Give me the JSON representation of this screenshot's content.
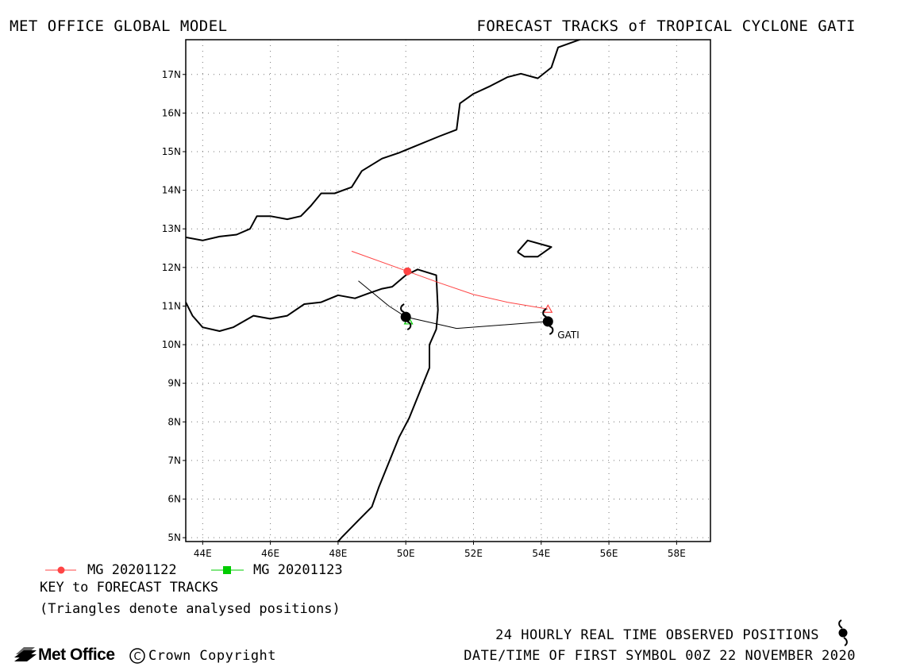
{
  "header": {
    "left_title": "MET OFFICE GLOBAL MODEL",
    "right_title": "FORECAST TRACKS of TROPICAL CYCLONE GATI"
  },
  "map": {
    "lon_range": [
      43.5,
      59.0
    ],
    "lat_range": [
      4.9,
      17.9
    ],
    "x_ticks": [
      "44E",
      "46E",
      "48E",
      "50E",
      "52E",
      "54E",
      "56E",
      "58E"
    ],
    "y_ticks": [
      "5N",
      "6N",
      "7N",
      "8N",
      "9N",
      "10N",
      "11N",
      "12N",
      "13N",
      "14N",
      "15N",
      "16N",
      "17N"
    ],
    "grid": true,
    "storm_label": "GATI",
    "coastlines": {
      "arabia": [
        [
          43.5,
          12.78
        ],
        [
          44.0,
          12.7
        ],
        [
          44.5,
          12.8
        ],
        [
          45.0,
          12.85
        ],
        [
          45.4,
          13.0
        ],
        [
          45.6,
          13.33
        ],
        [
          46.0,
          13.33
        ],
        [
          46.5,
          13.25
        ],
        [
          46.9,
          13.33
        ],
        [
          47.2,
          13.6
        ],
        [
          47.5,
          13.92
        ],
        [
          47.9,
          13.92
        ],
        [
          48.4,
          14.08
        ],
        [
          48.7,
          14.5
        ],
        [
          49.3,
          14.82
        ],
        [
          49.8,
          14.97
        ],
        [
          50.3,
          15.15
        ],
        [
          51.0,
          15.4
        ],
        [
          51.5,
          15.57
        ],
        [
          51.6,
          16.25
        ],
        [
          52.0,
          16.5
        ],
        [
          52.5,
          16.7
        ],
        [
          53.0,
          16.93
        ],
        [
          53.4,
          17.02
        ],
        [
          53.9,
          16.9
        ],
        [
          54.3,
          17.18
        ],
        [
          54.5,
          17.7
        ],
        [
          55.2,
          17.92
        ]
      ],
      "africa": [
        [
          43.5,
          11.1
        ],
        [
          43.7,
          10.75
        ],
        [
          44.0,
          10.45
        ],
        [
          44.5,
          10.35
        ],
        [
          44.9,
          10.45
        ],
        [
          45.5,
          10.75
        ],
        [
          46.0,
          10.67
        ],
        [
          46.5,
          10.75
        ],
        [
          47.0,
          11.05
        ],
        [
          47.5,
          11.1
        ],
        [
          48.0,
          11.28
        ],
        [
          48.5,
          11.2
        ],
        [
          48.9,
          11.33
        ],
        [
          49.3,
          11.45
        ],
        [
          49.6,
          11.5
        ],
        [
          50.0,
          11.8
        ],
        [
          50.35,
          11.95
        ],
        [
          50.9,
          11.8
        ],
        [
          50.95,
          10.9
        ],
        [
          50.9,
          10.4
        ],
        [
          50.7,
          10.0
        ],
        [
          50.7,
          9.4
        ],
        [
          50.1,
          8.1
        ],
        [
          49.8,
          7.6
        ],
        [
          49.2,
          6.3
        ],
        [
          49.0,
          5.8
        ],
        [
          48.6,
          5.45
        ],
        [
          48.1,
          5.0
        ],
        [
          48.0,
          4.9
        ]
      ],
      "socotra": [
        [
          53.3,
          12.4
        ],
        [
          53.6,
          12.7
        ],
        [
          54.3,
          12.53
        ],
        [
          53.9,
          12.28
        ],
        [
          53.5,
          12.28
        ],
        [
          53.3,
          12.4
        ]
      ]
    },
    "colors": {
      "mg_20201122": "#ff4444",
      "mg_20201123": "#00cc00",
      "observed": "#000000"
    }
  },
  "tracks": {
    "mg_20201122": {
      "label": "MG 20201122",
      "points": [
        [
          48.4,
          12.42
        ],
        [
          50.05,
          11.9
        ],
        [
          51.0,
          11.6
        ],
        [
          52.0,
          11.3
        ],
        [
          53.0,
          11.1
        ],
        [
          54.2,
          10.92
        ]
      ],
      "markers": [
        [
          50.05,
          11.9
        ]
      ],
      "triangle": [
        54.2,
        10.92
      ]
    },
    "mg_20201123": {
      "label": "MG 20201123",
      "points": [
        [
          50.0,
          10.72
        ],
        [
          50.1,
          10.6
        ]
      ],
      "triangle": [
        50.08,
        10.62
      ]
    },
    "observed": {
      "points": [
        [
          48.6,
          11.65
        ],
        [
          49.5,
          11.0
        ],
        [
          50.0,
          10.72
        ],
        [
          51.5,
          10.42
        ],
        [
          54.2,
          10.6
        ]
      ],
      "storm_symbols": [
        [
          50.0,
          10.72
        ],
        [
          54.2,
          10.6
        ]
      ]
    }
  },
  "key": {
    "title": "KEY to FORECAST TRACKS",
    "note": "(Triangles denote analysed positions)"
  },
  "footer": {
    "observed_label": "24 HOURLY REAL TIME OBSERVED POSITIONS",
    "datetime": "DATE/TIME OF FIRST SYMBOL 00Z 22 NOVEMBER 2020",
    "logo": "Met Office",
    "copyright": "Crown Copyright"
  }
}
